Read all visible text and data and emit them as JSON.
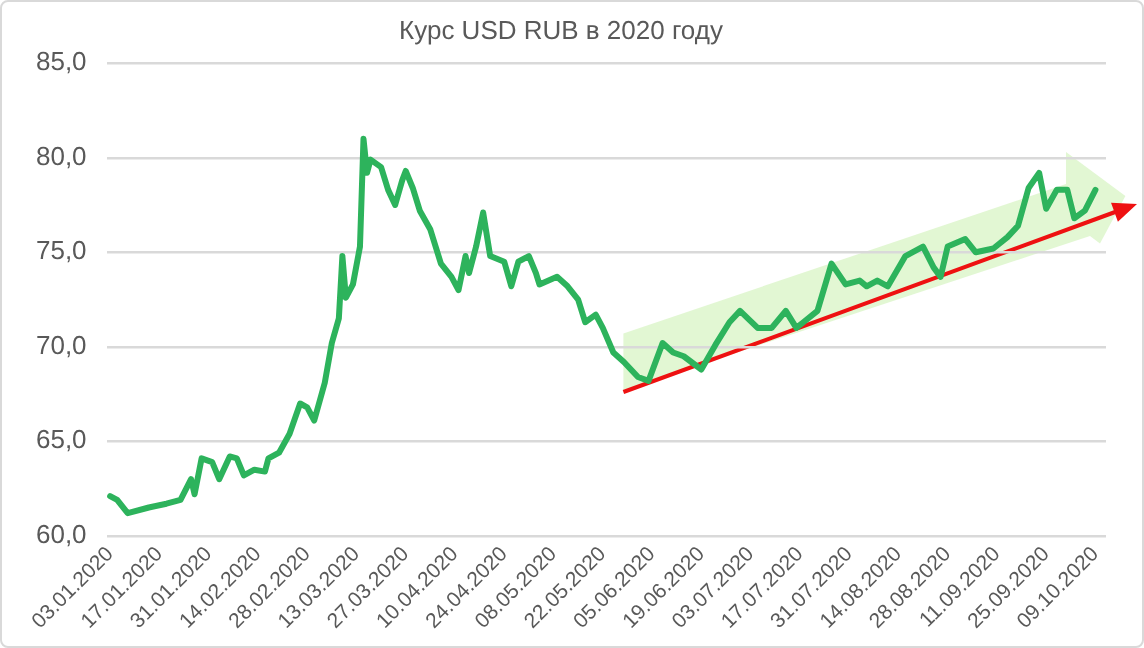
{
  "chart_data": {
    "type": "line",
    "title": "Курс USD RUB в 2020 году",
    "x": [
      "2020-01-03",
      "2020-01-05",
      "2020-01-08",
      "2020-01-14",
      "2020-01-19",
      "2020-01-23",
      "2020-01-26",
      "2020-01-27",
      "2020-01-29",
      "2020-02-01",
      "2020-02-03",
      "2020-02-06",
      "2020-02-08",
      "2020-02-10",
      "2020-02-13",
      "2020-02-16",
      "2020-02-17",
      "2020-02-20",
      "2020-02-23",
      "2020-02-26",
      "2020-02-28",
      "2020-03-01",
      "2020-03-04",
      "2020-03-06",
      "2020-03-08",
      "2020-03-09",
      "2020-03-10",
      "2020-03-12",
      "2020-03-14",
      "2020-03-15",
      "2020-03-16",
      "2020-03-17",
      "2020-03-20",
      "2020-03-22",
      "2020-03-24",
      "2020-03-26",
      "2020-03-27",
      "2020-03-29",
      "2020-03-31",
      "2020-04-03",
      "2020-04-06",
      "2020-04-09",
      "2020-04-11",
      "2020-04-13",
      "2020-04-14",
      "2020-04-16",
      "2020-04-18",
      "2020-04-20",
      "2020-04-24",
      "2020-04-26",
      "2020-04-28",
      "2020-05-01",
      "2020-05-03",
      "2020-05-04",
      "2020-05-09",
      "2020-05-12",
      "2020-05-15",
      "2020-05-17",
      "2020-05-20",
      "2020-05-22",
      "2020-05-25",
      "2020-05-28",
      "2020-06-01",
      "2020-06-04",
      "2020-06-08",
      "2020-06-11",
      "2020-06-14",
      "2020-06-19",
      "2020-06-23",
      "2020-06-27",
      "2020-06-30",
      "2020-07-05",
      "2020-07-09",
      "2020-07-13",
      "2020-07-16",
      "2020-07-18",
      "2020-07-22",
      "2020-07-26",
      "2020-07-30",
      "2020-08-03",
      "2020-08-05",
      "2020-08-08",
      "2020-08-11",
      "2020-08-16",
      "2020-08-21",
      "2020-08-24",
      "2020-08-26",
      "2020-08-28",
      "2020-09-02",
      "2020-09-05",
      "2020-09-10",
      "2020-09-14",
      "2020-09-17",
      "2020-09-20",
      "2020-09-23",
      "2020-09-25",
      "2020-09-28",
      "2020-10-01",
      "2020-10-03",
      "2020-10-06",
      "2020-10-09"
    ],
    "series": [
      {
        "color": "#2db35c",
        "values": [
          62.1,
          61.9,
          61.2,
          61.5,
          61.7,
          61.9,
          63.0,
          62.2,
          64.1,
          63.9,
          63.0,
          64.2,
          64.1,
          63.2,
          63.5,
          63.4,
          64.1,
          64.4,
          65.4,
          67.0,
          66.8,
          66.1,
          68.1,
          70.2,
          71.5,
          74.8,
          72.6,
          73.3,
          75.3,
          81.0,
          79.2,
          79.9,
          79.5,
          78.3,
          77.5,
          78.8,
          79.3,
          78.4,
          77.2,
          76.2,
          74.4,
          73.7,
          73.0,
          74.8,
          73.9,
          75.3,
          77.1,
          74.8,
          74.5,
          73.2,
          74.5,
          74.8,
          73.9,
          73.3,
          73.7,
          73.2,
          72.5,
          71.3,
          71.7,
          71.0,
          69.7,
          69.2,
          68.4,
          68.2,
          70.2,
          69.7,
          69.5,
          68.8,
          70.1,
          71.3,
          71.9,
          71.0,
          71.0,
          71.9,
          71.0,
          71.3,
          71.9,
          74.4,
          73.3,
          73.5,
          73.2,
          73.5,
          73.2,
          74.8,
          75.3,
          74.2,
          73.7,
          75.3,
          75.7,
          75.0,
          75.2,
          75.8,
          76.4,
          78.4,
          79.2,
          77.3,
          78.3,
          78.3,
          76.8,
          77.2,
          78.3
        ]
      }
    ],
    "xlim": [
      "2020-01-02",
      "2020-10-12"
    ],
    "xticks": [
      {
        "value": "2020-01-03",
        "label": "03.01.2020"
      },
      {
        "value": "2020-01-17",
        "label": "17.01.2020"
      },
      {
        "value": "2020-01-31",
        "label": "31.01.2020"
      },
      {
        "value": "2020-02-14",
        "label": "14.02.2020"
      },
      {
        "value": "2020-02-28",
        "label": "28.02.2020"
      },
      {
        "value": "2020-03-13",
        "label": "13.03.2020"
      },
      {
        "value": "2020-03-27",
        "label": "27.03.2020"
      },
      {
        "value": "2020-04-10",
        "label": "10.04.2020"
      },
      {
        "value": "2020-04-24",
        "label": "24.04.2020"
      },
      {
        "value": "2020-05-08",
        "label": "08.05.2020"
      },
      {
        "value": "2020-05-22",
        "label": "22.05.2020"
      },
      {
        "value": "2020-06-05",
        "label": "05.06.2020"
      },
      {
        "value": "2020-06-19",
        "label": "19.06.2020"
      },
      {
        "value": "2020-07-03",
        "label": "03.07.2020"
      },
      {
        "value": "2020-07-17",
        "label": "17.07.2020"
      },
      {
        "value": "2020-07-31",
        "label": "31.07.2020"
      },
      {
        "value": "2020-08-14",
        "label": "14.08.2020"
      },
      {
        "value": "2020-08-28",
        "label": "28.08.2020"
      },
      {
        "value": "2020-09-11",
        "label": "11.09.2020"
      },
      {
        "value": "2020-09-25",
        "label": "25.09.2020"
      },
      {
        "value": "2020-10-09",
        "label": "09.10.2020"
      }
    ],
    "ylim": [
      60,
      85
    ],
    "yticks": [
      {
        "value": 60,
        "label": "60,0"
      },
      {
        "value": 65,
        "label": "65,0"
      },
      {
        "value": 70,
        "label": "70,0"
      },
      {
        "value": 75,
        "label": "75,0"
      },
      {
        "value": 80,
        "label": "80,0"
      },
      {
        "value": 85,
        "label": "85,0"
      }
    ],
    "grid": "y",
    "marker": "none",
    "line_style": "solid"
  }
}
